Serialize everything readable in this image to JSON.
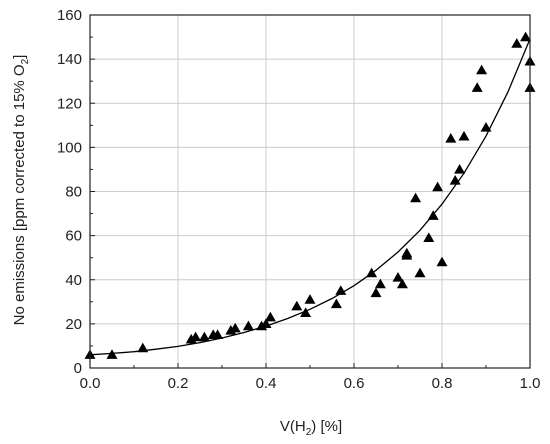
{
  "chart_data": {
    "type": "scatter",
    "xlabel": "V(H",
    "xlabel_sub": "2",
    "xlabel_tail": ") [%]",
    "ylabel": "No emissions [ppm corrected to 15% O",
    "ylabel_sub": "2",
    "ylabel_tail": "]",
    "xlim": [
      0.0,
      1.0
    ],
    "ylim": [
      0,
      160
    ],
    "xticks": [
      "0.0",
      "0.2",
      "0.4",
      "0.6",
      "0.8",
      "1.0"
    ],
    "yticks": [
      "0",
      "20",
      "40",
      "60",
      "80",
      "100",
      "120",
      "140",
      "160"
    ],
    "grid": true,
    "marker": "triangle",
    "colors": {
      "marker": "#000000",
      "line": "#000000",
      "grid": "#cccccc"
    },
    "series": [
      {
        "type": "scatter",
        "x": [
          0.0,
          0.05,
          0.12,
          0.23,
          0.24,
          0.26,
          0.28,
          0.29,
          0.32,
          0.33,
          0.36,
          0.39,
          0.4,
          0.41,
          0.47,
          0.49,
          0.5,
          0.56,
          0.57,
          0.64,
          0.65,
          0.66,
          0.7,
          0.71,
          0.72,
          0.72,
          0.74,
          0.75,
          0.77,
          0.78,
          0.79,
          0.8,
          0.82,
          0.83,
          0.84,
          0.85,
          0.88,
          0.89,
          0.9,
          0.97,
          0.99,
          1.0,
          1.0
        ],
        "y": [
          6,
          6,
          9,
          13,
          14,
          14,
          15,
          15,
          17,
          18,
          19,
          19,
          20,
          23,
          28,
          25,
          31,
          29,
          35,
          43,
          34,
          38,
          41,
          38,
          51,
          52,
          77,
          43,
          59,
          69,
          82,
          48,
          104,
          85,
          90,
          105,
          127,
          135,
          109,
          147,
          150,
          139,
          127
        ]
      },
      {
        "type": "line",
        "x": [
          0.0,
          0.05,
          0.1,
          0.15,
          0.2,
          0.25,
          0.3,
          0.35,
          0.4,
          0.45,
          0.5,
          0.55,
          0.6,
          0.65,
          0.7,
          0.75,
          0.8,
          0.85,
          0.9,
          0.95,
          1.0
        ],
        "y": [
          6.0,
          6.6,
          7.4,
          8.5,
          9.8,
          11.5,
          13.6,
          16.1,
          19.0,
          22.5,
          26.6,
          31.5,
          37.3,
          44.3,
          52.6,
          62.4,
          74.3,
          88.3,
          105.1,
          125.2,
          149.1
        ]
      }
    ]
  }
}
